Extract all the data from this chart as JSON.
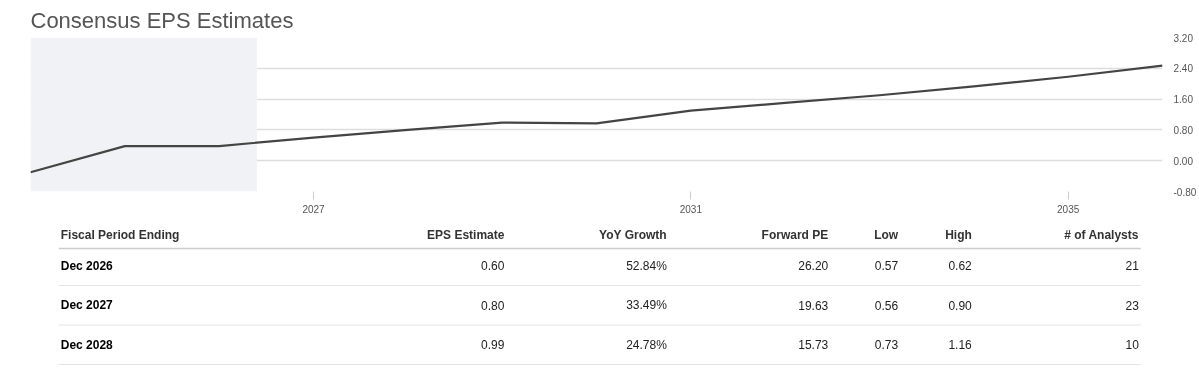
{
  "chart_data": [
    {
      "type": "line",
      "title": "Consensus EPS Estimates",
      "x": [
        2024,
        2025,
        2026,
        2027,
        2028,
        2029,
        2030,
        2031,
        2032,
        2033,
        2034,
        2035,
        2036
      ],
      "series": [
        {
          "color": "#444444",
          "values": [
            -0.3,
            0.38,
            0.38,
            0.6,
            0.8,
            0.99,
            0.97,
            1.3,
            1.5,
            1.7,
            1.93,
            2.18,
            2.47
          ]
        }
      ],
      "xlim": [
        2024,
        2036
      ],
      "xticks": [
        2027,
        2031,
        2035
      ],
      "ylim": [
        -0.8,
        3.2
      ],
      "yticks": [
        {
          "value": -0.8,
          "label": "-0.80"
        },
        {
          "value": 0,
          "label": "0.00"
        },
        {
          "value": 0.8,
          "label": "0.80"
        },
        {
          "value": 1.6,
          "label": "1.60"
        },
        {
          "value": 2.4,
          "label": "2.40"
        },
        {
          "value": 3.2,
          "label": "3.20"
        }
      ],
      "bands": [
        {
          "axis": "x",
          "from": 2024,
          "to": 2026.4,
          "color": "#f1f2f6"
        }
      ],
      "grid": "y"
    },
    {
      "type": "other",
      "categories": [
        "Fiscal Period Ending",
        "EPS Estimate",
        "YoY Growth",
        "Forward PE",
        "Low",
        "High",
        "# of Analysts"
      ],
      "y_categories": [
        "Dec 2026",
        "Dec 2027",
        "Dec 2028"
      ],
      "cell_labels": [
        [
          "0.60",
          "52.84%",
          "26.20",
          "0.57",
          "0.62",
          "21"
        ],
        [
          "0.80",
          "33.49%",
          "19.63",
          "0.56",
          "0.90",
          "23"
        ],
        [
          "0.99",
          "24.78%",
          "15.73",
          "0.73",
          "1.16",
          "10"
        ]
      ]
    }
  ]
}
